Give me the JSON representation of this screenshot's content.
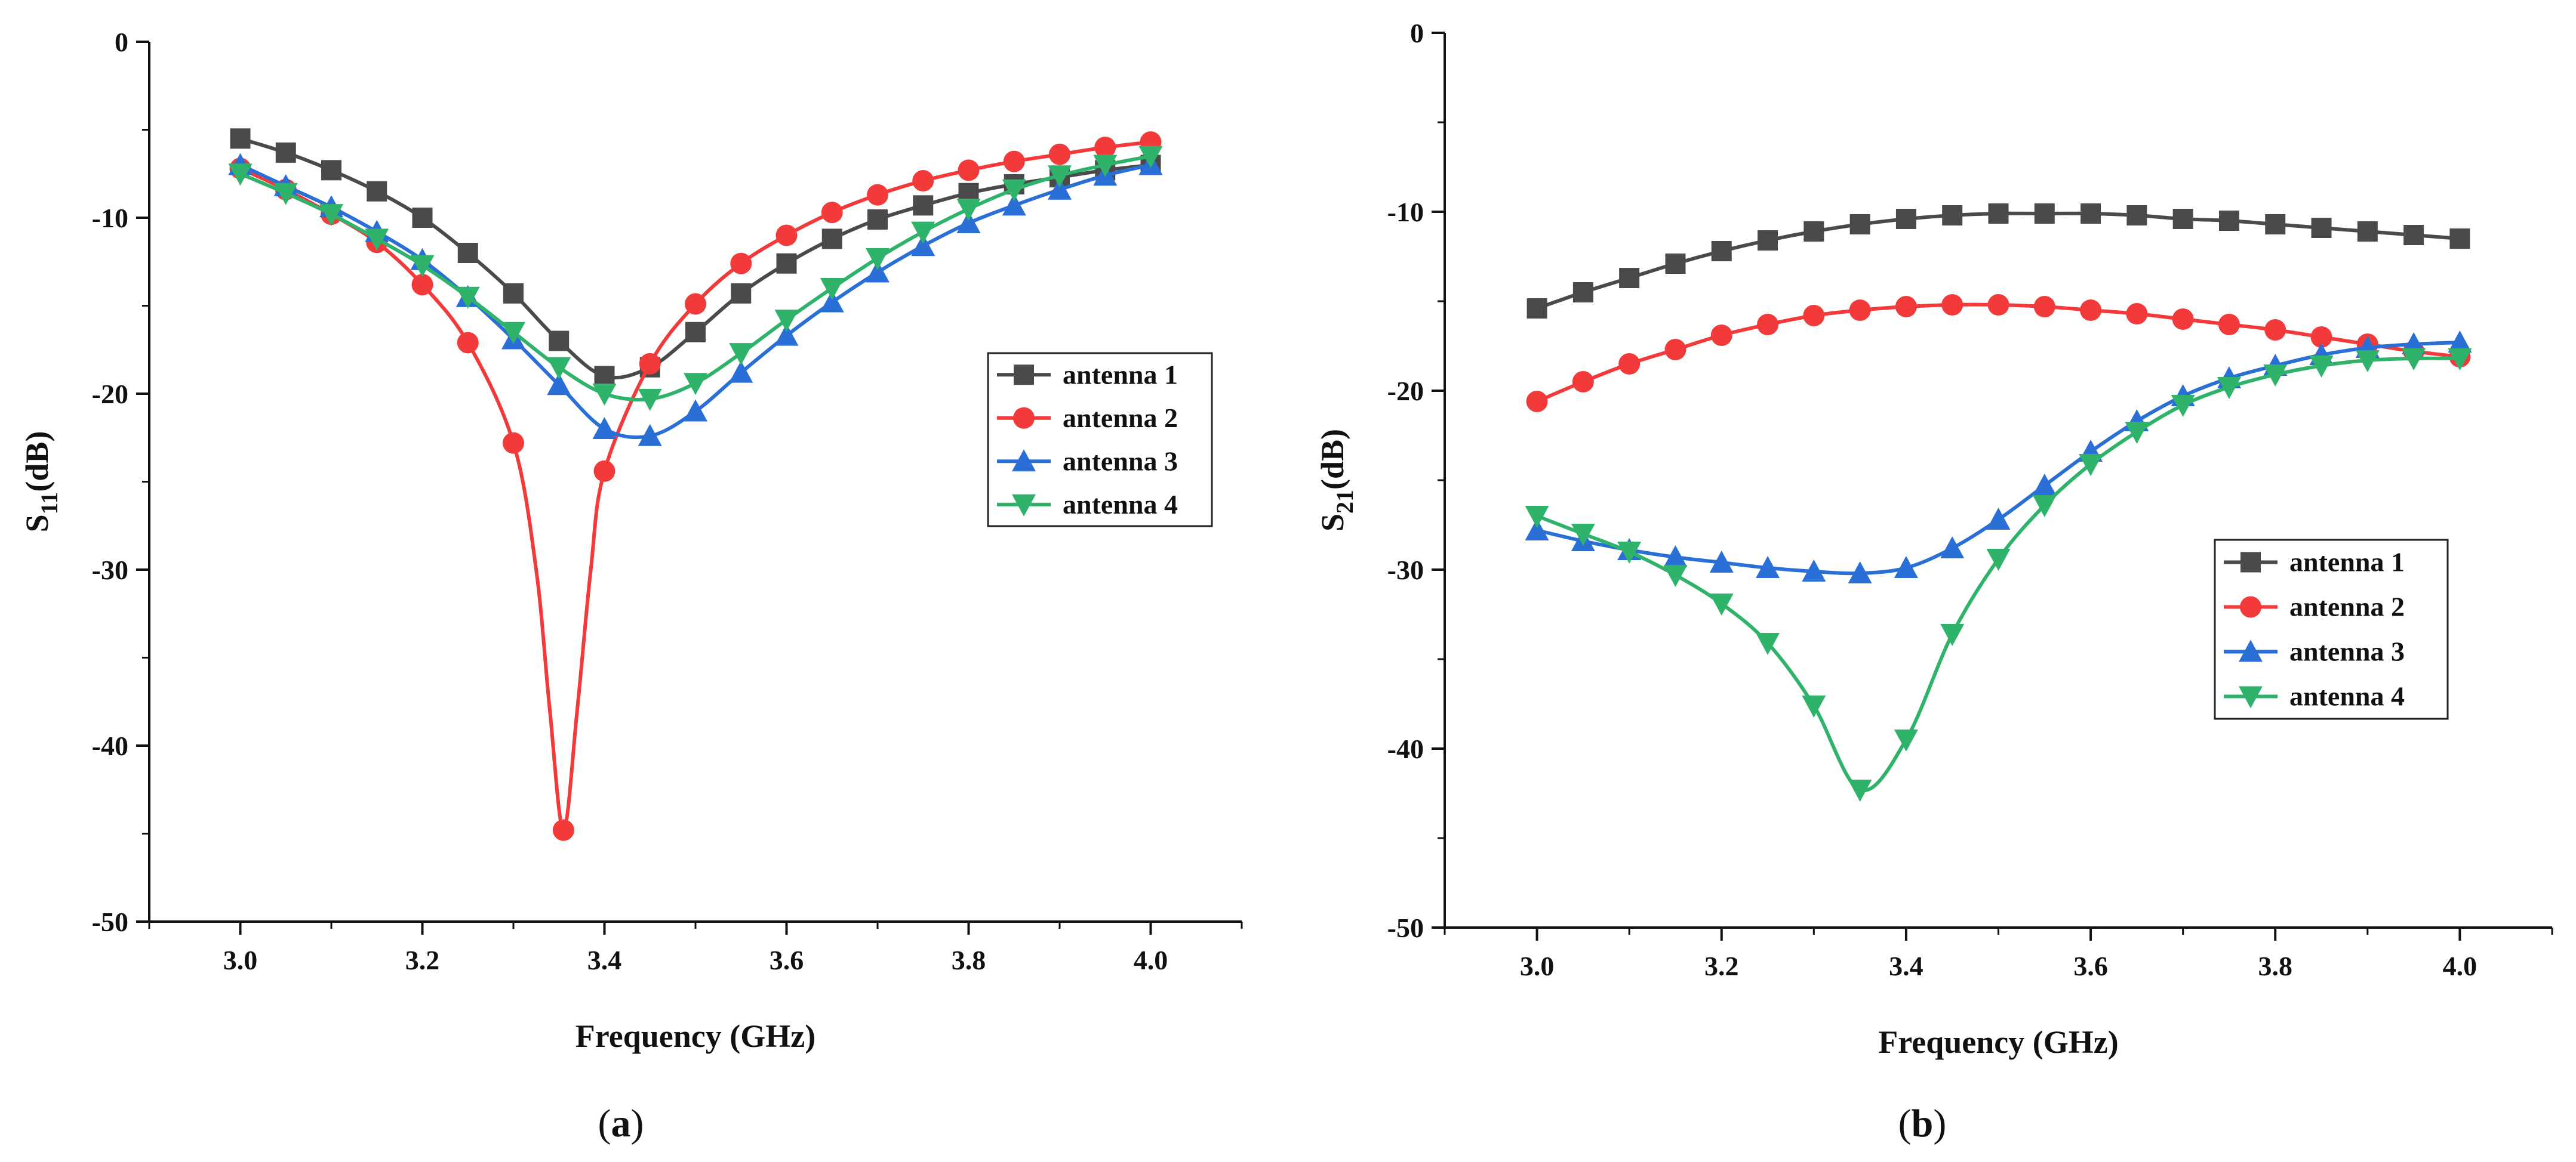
{
  "colors": {
    "antenna1": "#4a4a4a",
    "antenna2": "#f23a3a",
    "antenna3": "#2a6fd6",
    "antenna4": "#2fb36a"
  },
  "chart_data": [
    {
      "type": "line",
      "panel": "(a)",
      "caption_letter": "a",
      "xlabel": "Frequency (GHz)",
      "ylabel_main": "S",
      "ylabel_sub": "11",
      "ylabel_unit": "(dB)",
      "xlim": [
        2.9,
        4.1
      ],
      "ylim": [
        -50,
        0
      ],
      "xticks": [
        3.0,
        3.2,
        3.4,
        3.6,
        3.8,
        4.0
      ],
      "xtick_labels": [
        "3.0",
        "3.2",
        "3.4",
        "3.6",
        "3.8",
        "4.0"
      ],
      "yticks": [
        0,
        -10,
        -20,
        -30,
        -40,
        -50
      ],
      "ytick_labels": [
        "0",
        "-10",
        "-20",
        "-30",
        "-40",
        "-50"
      ],
      "legend_position": "right-middle",
      "series": [
        {
          "name": "antenna 1",
          "marker": "square",
          "color_key": "antenna1",
          "x": [
            3.0,
            3.05,
            3.1,
            3.15,
            3.2,
            3.25,
            3.3,
            3.35,
            3.4,
            3.45,
            3.5,
            3.55,
            3.6,
            3.65,
            3.7,
            3.75,
            3.8,
            3.85,
            3.9,
            3.95,
            4.0
          ],
          "y": [
            -5.5,
            -6.3,
            -7.3,
            -8.5,
            -10.0,
            -12.0,
            -14.3,
            -17.0,
            -19.0,
            -18.5,
            -16.5,
            -14.3,
            -12.6,
            -11.2,
            -10.1,
            -9.3,
            -8.6,
            -8.1,
            -7.7,
            -7.3,
            -7.0
          ]
        },
        {
          "name": "antenna 2",
          "marker": "circle",
          "color_key": "antenna2",
          "x": [
            3.0,
            3.05,
            3.1,
            3.15,
            3.2,
            3.25,
            3.3,
            3.325,
            3.34,
            3.355,
            3.37,
            3.385,
            3.4,
            3.45,
            3.5,
            3.55,
            3.6,
            3.65,
            3.7,
            3.75,
            3.8,
            3.85,
            3.9,
            3.95,
            4.0
          ],
          "y": [
            -7.2,
            -8.4,
            -9.8,
            -11.4,
            -13.8,
            -17.1,
            -22.8,
            -30.0,
            -38.0,
            -44.8,
            -38.0,
            -30.0,
            -24.4,
            -18.3,
            -14.9,
            -12.6,
            -11.0,
            -9.7,
            -8.7,
            -7.9,
            -7.3,
            -6.8,
            -6.4,
            -6.0,
            -5.7
          ],
          "marker_x": [
            3.0,
            3.05,
            3.1,
            3.15,
            3.2,
            3.25,
            3.3,
            3.355,
            3.4,
            3.45,
            3.5,
            3.55,
            3.6,
            3.65,
            3.7,
            3.75,
            3.8,
            3.85,
            3.9,
            3.95,
            4.0
          ]
        },
        {
          "name": "antenna 3",
          "marker": "triangle-up",
          "color_key": "antenna3",
          "x": [
            3.0,
            3.05,
            3.1,
            3.15,
            3.2,
            3.25,
            3.3,
            3.35,
            3.4,
            3.45,
            3.5,
            3.55,
            3.6,
            3.65,
            3.7,
            3.75,
            3.8,
            3.85,
            3.9,
            3.95,
            4.0
          ],
          "y": [
            -7.0,
            -8.2,
            -9.4,
            -10.8,
            -12.4,
            -14.5,
            -16.9,
            -19.5,
            -22.0,
            -22.4,
            -21.0,
            -18.8,
            -16.7,
            -14.8,
            -13.1,
            -11.6,
            -10.3,
            -9.3,
            -8.4,
            -7.6,
            -7.0
          ]
        },
        {
          "name": "antenna 4",
          "marker": "triangle-down",
          "color_key": "antenna4",
          "x": [
            3.0,
            3.05,
            3.1,
            3.15,
            3.2,
            3.25,
            3.3,
            3.35,
            3.4,
            3.45,
            3.5,
            3.55,
            3.6,
            3.65,
            3.7,
            3.75,
            3.8,
            3.85,
            3.9,
            3.95,
            4.0
          ],
          "y": [
            -7.5,
            -8.6,
            -9.8,
            -11.2,
            -12.7,
            -14.5,
            -16.5,
            -18.5,
            -20.0,
            -20.3,
            -19.4,
            -17.7,
            -15.8,
            -14.0,
            -12.3,
            -10.8,
            -9.5,
            -8.4,
            -7.6,
            -7.0,
            -6.5
          ]
        }
      ]
    },
    {
      "type": "line",
      "panel": "(b)",
      "caption_letter": "b",
      "xlabel": "Frequency (GHz)",
      "ylabel_main": "S",
      "ylabel_sub": "21",
      "ylabel_unit": "(dB)",
      "xlim": [
        2.9,
        4.1
      ],
      "ylim": [
        -50,
        0
      ],
      "xticks": [
        3.0,
        3.2,
        3.4,
        3.6,
        3.8,
        4.0
      ],
      "xtick_labels": [
        "3.0",
        "3.2",
        "3.4",
        "3.6",
        "3.8",
        "4.0"
      ],
      "yticks": [
        0,
        -10,
        -20,
        -30,
        -40,
        -50
      ],
      "ytick_labels": [
        "0",
        "-10",
        "-20",
        "-30",
        "-40",
        "-50"
      ],
      "legend_position": "right-middle",
      "series": [
        {
          "name": "antenna 1",
          "marker": "square",
          "color_key": "antenna1",
          "x": [
            3.0,
            3.05,
            3.1,
            3.15,
            3.2,
            3.25,
            3.3,
            3.35,
            3.4,
            3.45,
            3.5,
            3.55,
            3.6,
            3.65,
            3.7,
            3.75,
            3.8,
            3.85,
            3.9,
            3.95,
            4.0
          ],
          "y": [
            -15.4,
            -14.5,
            -13.7,
            -12.9,
            -12.2,
            -11.6,
            -11.1,
            -10.7,
            -10.4,
            -10.2,
            -10.1,
            -10.1,
            -10.1,
            -10.2,
            -10.4,
            -10.5,
            -10.7,
            -10.9,
            -11.1,
            -11.3,
            -11.5
          ]
        },
        {
          "name": "antenna 2",
          "marker": "circle",
          "color_key": "antenna2",
          "x": [
            3.0,
            3.05,
            3.1,
            3.15,
            3.2,
            3.25,
            3.3,
            3.35,
            3.4,
            3.45,
            3.5,
            3.55,
            3.6,
            3.65,
            3.7,
            3.75,
            3.8,
            3.85,
            3.9,
            3.95,
            4.0
          ],
          "y": [
            -20.6,
            -19.5,
            -18.5,
            -17.7,
            -16.9,
            -16.3,
            -15.8,
            -15.5,
            -15.3,
            -15.2,
            -15.2,
            -15.3,
            -15.5,
            -15.7,
            -16.0,
            -16.3,
            -16.6,
            -17.0,
            -17.4,
            -17.8,
            -18.1
          ]
        },
        {
          "name": "antenna 3",
          "marker": "triangle-up",
          "color_key": "antenna3",
          "x": [
            3.0,
            3.05,
            3.1,
            3.15,
            3.2,
            3.25,
            3.3,
            3.35,
            3.4,
            3.45,
            3.5,
            3.55,
            3.6,
            3.65,
            3.7,
            3.75,
            3.8,
            3.85,
            3.9,
            3.95,
            4.0
          ],
          "y": [
            -27.8,
            -28.4,
            -28.9,
            -29.3,
            -29.6,
            -29.9,
            -30.1,
            -30.2,
            -29.9,
            -28.8,
            -27.2,
            -25.3,
            -23.4,
            -21.7,
            -20.3,
            -19.3,
            -18.6,
            -18.0,
            -17.6,
            -17.4,
            -17.3
          ]
        },
        {
          "name": "antenna 4",
          "marker": "triangle-down",
          "color_key": "antenna4",
          "x": [
            3.0,
            3.05,
            3.1,
            3.15,
            3.2,
            3.25,
            3.3,
            3.35,
            3.4,
            3.45,
            3.5,
            3.55,
            3.6,
            3.65,
            3.7,
            3.75,
            3.8,
            3.85,
            3.9,
            3.95,
            4.0
          ],
          "y": [
            -27.0,
            -28.0,
            -29.0,
            -30.3,
            -31.9,
            -34.1,
            -37.6,
            -42.3,
            -39.5,
            -33.6,
            -29.4,
            -26.4,
            -24.1,
            -22.3,
            -20.8,
            -19.8,
            -19.1,
            -18.6,
            -18.3,
            -18.2,
            -18.2
          ]
        }
      ]
    }
  ]
}
